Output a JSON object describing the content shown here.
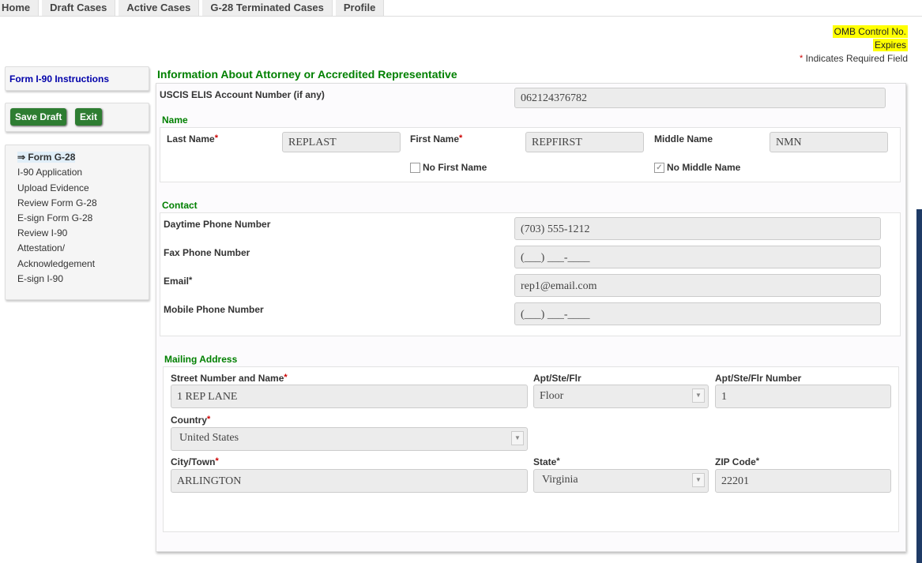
{
  "tabs": [
    "Home",
    "Draft Cases",
    "Active Cases",
    "G-28 Terminated Cases",
    "Profile"
  ],
  "header": {
    "omb": "OMB Control No.",
    "expires": "Expires",
    "required_mark": "*",
    "required_note": "Indicates Required Field"
  },
  "sidebar": {
    "instructions": "Form I-90 Instructions",
    "save_draft": "Save Draft",
    "exit": "Exit",
    "steps": [
      "⇒ Form G-28",
      "I-90 Application",
      "Upload Evidence",
      "Review Form G-28",
      "E-sign Form G-28",
      "Review I-90",
      "Attestation/",
      "Acknowledgement",
      "E-sign I-90"
    ]
  },
  "form": {
    "title": "Information About Attorney or Accredited Representative",
    "elis_label": "USCIS ELIS Account Number (if any)",
    "elis_value": "062124376782",
    "name_heading": "Name",
    "last_label": "Last Name",
    "last_value": "REPLAST",
    "first_label": "First Name",
    "first_value": "REPFIRST",
    "middle_label": "Middle Name",
    "middle_value": "NMN",
    "no_first": "No First Name",
    "no_middle": "No Middle Name",
    "no_first_checked": false,
    "no_middle_checked": true,
    "contact_heading": "Contact",
    "day_label": "Daytime Phone Number",
    "day_value": "(703) 555-1212",
    "fax_label": "Fax Phone Number",
    "fax_value": "(___) ___-____",
    "email_label": "Email",
    "email_value": "rep1@email.com",
    "mobile_label": "Mobile Phone Number",
    "mobile_value": "(___) ___-____",
    "mail_heading": "Mailing Address",
    "street_label": "Street Number and Name",
    "street_value": "1 REP LANE",
    "apt_label": "Apt/Ste/Flr",
    "apt_value": "Floor",
    "aptnum_label": "Apt/Ste/Flr Number",
    "aptnum_value": "1",
    "country_label": "Country",
    "country_value": "United States",
    "city_label": "City/Town",
    "city_value": "ARLINGTON",
    "state_label": "State",
    "state_value": "Virginia",
    "zip_label": "ZIP Code",
    "zip_value": "22201",
    "req": "*"
  }
}
